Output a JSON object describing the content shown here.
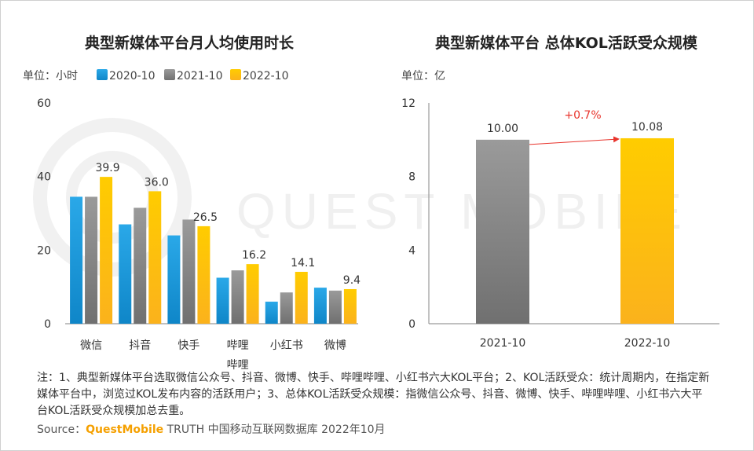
{
  "chart_data": [
    {
      "type": "bar",
      "title": "典型新媒体平台月人均使用时长",
      "unit_label": "单位：小时",
      "categories": [
        "微信",
        "抖音",
        "快手",
        "哔哩哔哩",
        "小红书",
        "微博"
      ],
      "series": [
        {
          "name": "2020-10",
          "color": "#1fa0e0",
          "values": [
            34.5,
            27,
            24,
            12.5,
            6,
            9.8
          ]
        },
        {
          "name": "2021-10",
          "color": "#8a8a8a",
          "values": [
            34.5,
            31.5,
            28.3,
            14.5,
            8.5,
            9
          ]
        },
        {
          "name": "2022-10",
          "color": "#ffc000",
          "values": [
            39.9,
            36.0,
            26.5,
            16.2,
            14.1,
            9.4
          ]
        }
      ],
      "data_labels": [
        "39.9",
        "36.0",
        "26.5",
        "16.2",
        "14.1",
        "9.4"
      ],
      "yticks": [
        0,
        20,
        40,
        60
      ],
      "ylim": [
        0,
        60
      ],
      "legend": "top-left"
    },
    {
      "type": "bar",
      "title": "典型新媒体平台 总体KOL活跃受众规模",
      "unit_label": "单位：亿",
      "categories": [
        "2021-10",
        "2022-10"
      ],
      "values": [
        10.0,
        10.08
      ],
      "colors": [
        "#808080",
        "#ffc000"
      ],
      "data_labels": [
        "10.00",
        "10.08"
      ],
      "yticks": [
        0,
        4,
        8,
        12
      ],
      "ylim": [
        0,
        12
      ],
      "annotation": "+0.7%"
    }
  ],
  "watermark": "QUEST MOBILE",
  "footer": {
    "note": "注：1、典型新媒体平台选取微信公众号、抖音、微博、快手、哔哩哔哩、小红书六大KOL平台；2、KOL活跃受众：统计周期内，在指定新媒体平台中，浏览过KOL发布内容的活跃用户；3、总体KOL活跃受众规模：指微信公众号、抖音、微博、快手、哔哩哔哩、小红书六大平台KOL活跃受众规模加总去重。",
    "source_prefix": "Source：",
    "source_brand": "QuestMobile",
    "source_rest": " TRUTH 中国移动互联网数据库 2022年10月"
  }
}
